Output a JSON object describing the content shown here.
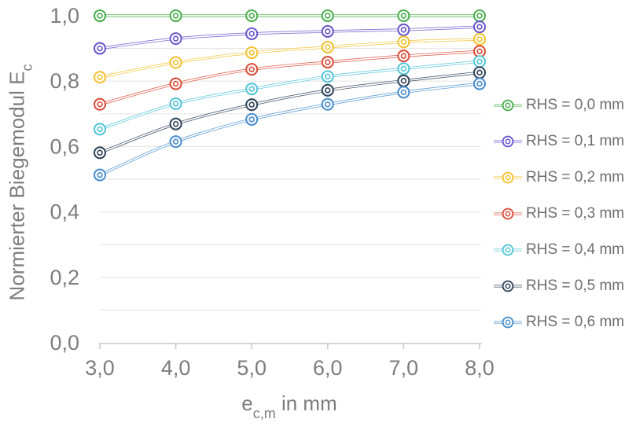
{
  "figure": {
    "background": "#ffffff",
    "text_color": "#7d7d7d",
    "grid_color": "#e7e7e7",
    "axis_color": "#c9c9c9",
    "y_axis_title": {
      "base": "Normierter Biegemodul E",
      "sub": "c"
    },
    "x_axis_title": {
      "base": "e",
      "sub": "c,m",
      "rest": " in mm"
    }
  },
  "chart_data": {
    "type": "line",
    "title": "",
    "xlabel": "e_c,m in mm",
    "ylabel": "Normierter Biegemodul E_c",
    "x": [
      3.0,
      4.0,
      5.0,
      6.0,
      7.0,
      8.0
    ],
    "x_tick_labels": [
      "3,0",
      "4,0",
      "5,0",
      "6,0",
      "7,0",
      "8,0"
    ],
    "y_ticks": [
      0.0,
      0.2,
      0.4,
      0.6,
      0.8,
      1.0
    ],
    "y_tick_labels": [
      "0,0",
      "0,2",
      "0,4",
      "0,6",
      "0,8",
      "1,0"
    ],
    "xlim": [
      3.0,
      8.0
    ],
    "ylim": [
      0.0,
      1.0
    ],
    "y_grid_step": 0.1,
    "grid": "horizontal",
    "legend_position": "right",
    "marker_style": "double-circle",
    "line_style": "double-line",
    "series": [
      {
        "name": "RHS = 0,0 mm",
        "color": "#4caf50",
        "values": [
          1.0,
          1.0,
          1.0,
          1.0,
          1.0,
          1.0
        ]
      },
      {
        "name": "RHS = 0,1 mm",
        "color": "#6a5acd",
        "values": [
          0.9,
          0.93,
          0.945,
          0.952,
          0.957,
          0.966
        ]
      },
      {
        "name": "RHS = 0,2 mm",
        "color": "#f2c233",
        "values": [
          0.812,
          0.857,
          0.887,
          0.904,
          0.92,
          0.928
        ]
      },
      {
        "name": "RHS = 0,3 mm",
        "color": "#d9503d",
        "values": [
          0.729,
          0.792,
          0.836,
          0.858,
          0.877,
          0.891
        ]
      },
      {
        "name": "RHS = 0,4 mm",
        "color": "#55c6d6",
        "values": [
          0.653,
          0.731,
          0.776,
          0.814,
          0.838,
          0.86
        ]
      },
      {
        "name": "RHS = 0,5 mm",
        "color": "#33475b",
        "values": [
          0.581,
          0.669,
          0.728,
          0.772,
          0.801,
          0.826
        ]
      },
      {
        "name": "RHS = 0,6 mm",
        "color": "#4b8fcd",
        "values": [
          0.513,
          0.615,
          0.683,
          0.729,
          0.766,
          0.792
        ]
      }
    ]
  }
}
